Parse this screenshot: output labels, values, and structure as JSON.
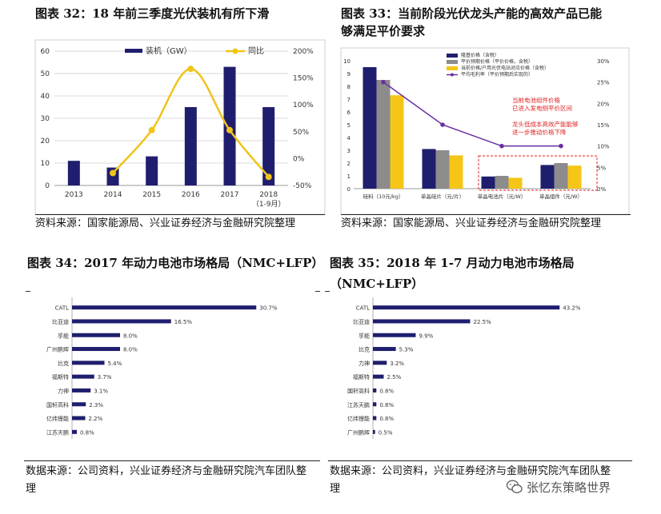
{
  "titles": {
    "c32": "图表 32：18 年前三季度光伏装机有所下滑",
    "c33_line1": "图表 33：当前阶段光伏龙头产能的高效产品已能",
    "c33_line2": "够满足平价要求",
    "c34": "图表 34：2017 年动力电池市场格局（NMC+LFP）",
    "c35_line1": "图表 35：2018 年 1-7 月动力电池市场格局",
    "c35_line2": "（NMC+LFP）"
  },
  "sources": {
    "c32": "资料来源：国家能源局、兴业证券经济与金融研究院整理",
    "c33": "资料来源：国家能源局、兴业证券经济与金融研究院整理",
    "c34_line1": "数据来源：公司资料，兴业证券经济与金融研究院汽车团队整",
    "c34_line2": "理",
    "c35_line1": "数据来源：公司资料，兴业证券经济与金融研究院汽车团队整",
    "c35_line2": "理"
  },
  "watermark": "张忆东策略世界",
  "colors": {
    "navy": "#1f1e6e",
    "gray": "#8c8c8c",
    "yellow": "#f5c518",
    "purple": "#6b2fa0",
    "line32": "#f0c419",
    "red": "#e02020",
    "grid": "#d9d9d9"
  },
  "chart_data": [
    {
      "id": "c32",
      "type": "bar+line",
      "categories": [
        "2013",
        "2014",
        "2015",
        "2016",
        "2017",
        "2018"
      ],
      "category_sublabel": {
        "2018": "（1-9月）"
      },
      "series": [
        {
          "name": "装机（GW）",
          "kind": "bar",
          "axis": "left",
          "values": [
            11,
            8,
            13,
            35,
            53,
            35
          ]
        },
        {
          "name": "同比",
          "kind": "line",
          "axis": "right",
          "values": [
            null,
            -27,
            53,
            167,
            53,
            -34
          ]
        }
      ],
      "ylim_left": [
        0,
        60
      ],
      "yticks_left": [
        "0",
        "10",
        "20",
        "30",
        "40",
        "50",
        "60"
      ],
      "ylim_right": [
        -50,
        200
      ],
      "yticks_right": [
        "-50%",
        "0%",
        "50%",
        "100%",
        "150%",
        "200%"
      ]
    },
    {
      "id": "c33",
      "type": "bar+line",
      "categories": [
        "硅料（10元/kg）",
        "单晶硅片（元/片）",
        "单晶电池片（元/W）",
        "单晶组件（元/W）"
      ],
      "series": [
        {
          "name": "隆基价格（含税）",
          "kind": "bar",
          "axis": "left",
          "values": [
            9.5,
            3.1,
            0.95,
            1.85
          ]
        },
        {
          "name": "平价预期价格（平价价格，含税）",
          "kind": "bar",
          "axis": "left",
          "values": [
            8.5,
            3.0,
            1.0,
            2.0
          ]
        },
        {
          "name": "当前价格/户用光伏电站对应价格（含税）",
          "kind": "bar",
          "axis": "left",
          "values": [
            7.3,
            2.6,
            0.85,
            1.8
          ]
        },
        {
          "name": "平均毛利率（平价预期后实现的）",
          "kind": "line",
          "axis": "right",
          "values": [
            25,
            15,
            10,
            10
          ]
        }
      ],
      "ylim_left": [
        0,
        10
      ],
      "yticks_left": [
        "0",
        "1",
        "2",
        "3",
        "4",
        "5",
        "6",
        "7",
        "8",
        "9",
        "10"
      ],
      "ylim_right": [
        0,
        30
      ],
      "yticks_right": [
        "0%",
        "5%",
        "10%",
        "15%",
        "20%",
        "25%",
        "30%"
      ],
      "annotations": [
        "当前电池组件价格",
        "已进入发电侧平价区间",
        "龙头低成本高效产能能够",
        "进一步推动价格下降"
      ]
    },
    {
      "id": "c34",
      "type": "bar",
      "orientation": "horizontal",
      "categories": [
        "CATL",
        "比亚迪",
        "孚能",
        "广州鹏辉",
        "比克",
        "福斯特",
        "力神",
        "国轩高科",
        "亿纬锂能",
        "江苏天鹏"
      ],
      "values": [
        30.7,
        16.5,
        8.0,
        8.0,
        5.4,
        3.7,
        3.1,
        2.3,
        2.2,
        0.8
      ],
      "labels": [
        "30.7%",
        "16.5%",
        "8.0%",
        "8.0%",
        "5.4%",
        "3.7%",
        "3.1%",
        "2.3%",
        "2.2%",
        "0.8%"
      ],
      "xlim": [
        0,
        36
      ]
    },
    {
      "id": "c35",
      "type": "bar",
      "orientation": "horizontal",
      "categories": [
        "CATL",
        "比亚迪",
        "孚能",
        "比克",
        "力神",
        "福斯特",
        "国轩高科",
        "江苏天鹏",
        "亿纬锂能",
        "广州鹏辉"
      ],
      "values": [
        43.2,
        22.5,
        9.9,
        5.3,
        3.2,
        2.5,
        0.8,
        0.8,
        0.8,
        0.5
      ],
      "labels": [
        "43.2%",
        "22.5%",
        "9.9%",
        "5.3%",
        "3.2%",
        "2.5%",
        "0.8%",
        "0.8%",
        "0.8%",
        "0.5%"
      ],
      "xlim": [
        0,
        50
      ]
    }
  ]
}
